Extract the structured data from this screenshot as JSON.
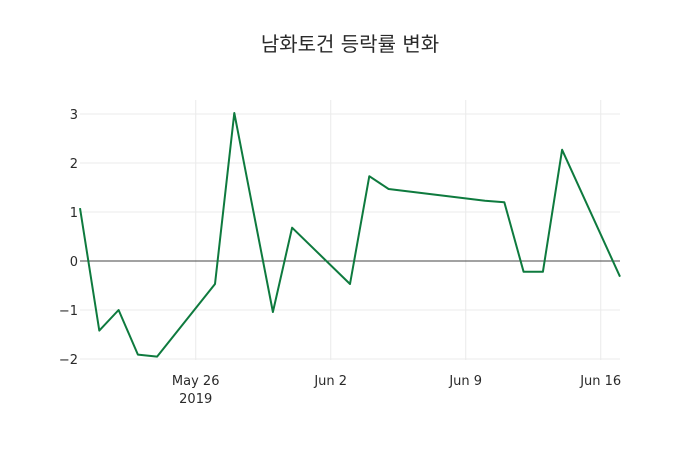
{
  "chart_data": {
    "type": "line",
    "title": "남화토건 등락률 변화",
    "xlabel": "",
    "ylabel": "",
    "ylim": [
      -2.05,
      3.3
    ],
    "xrange": [
      "2019-05-20",
      "2019-06-17"
    ],
    "grid": true,
    "legend": false,
    "line_color": "#0e7a3e",
    "zero_line_color": "#444444",
    "grid_color": "#ebebeb",
    "x_tick_labels": [
      {
        "date": "2019-05-26",
        "label": "May 26",
        "sub": "2019"
      },
      {
        "date": "2019-06-02",
        "label": "Jun 2",
        "sub": ""
      },
      {
        "date": "2019-06-09",
        "label": "Jun 9",
        "sub": ""
      },
      {
        "date": "2019-06-16",
        "label": "Jun 16",
        "sub": ""
      }
    ],
    "y_ticks": [
      3,
      2,
      1,
      0,
      -1,
      -2
    ],
    "y_tick_labels": [
      "3",
      "2",
      "1",
      "0",
      "−1",
      "−2"
    ],
    "series": [
      {
        "name": "등락률",
        "x": [
          "2019-05-20",
          "2019-05-21",
          "2019-05-22",
          "2019-05-23",
          "2019-05-24",
          "2019-05-27",
          "2019-05-28",
          "2019-05-30",
          "2019-05-31",
          "2019-06-03",
          "2019-06-04",
          "2019-06-05",
          "2019-06-10",
          "2019-06-11",
          "2019-06-12",
          "2019-06-13",
          "2019-06-14",
          "2019-06-17"
        ],
        "values": [
          1.08,
          -1.42,
          -1.0,
          -1.91,
          -1.95,
          -0.47,
          3.02,
          -1.04,
          0.68,
          -0.47,
          1.73,
          1.47,
          1.23,
          1.2,
          -0.22,
          -0.22,
          2.27,
          -0.32
        ]
      }
    ]
  }
}
